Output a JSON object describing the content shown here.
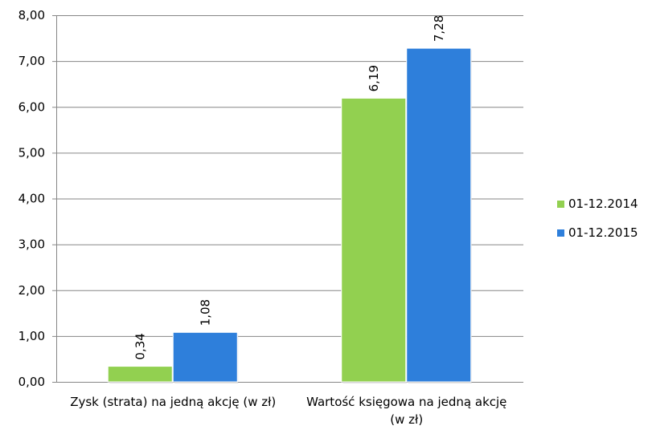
{
  "chart_data": {
    "type": "bar",
    "categories": [
      [
        "Zysk (strata) na jedną akcję (w zł)"
      ],
      [
        "Wartość księgowa na jedną akcję",
        "(w zł)"
      ]
    ],
    "series": [
      {
        "name": "01-12.2014",
        "color": "#92d050",
        "values": [
          0.34,
          6.19
        ],
        "labels": [
          "0,34",
          "6,19"
        ]
      },
      {
        "name": "01-12.2015",
        "color": "#2e7fdb",
        "values": [
          1.08,
          7.28
        ],
        "labels": [
          "1,08",
          "7,28"
        ]
      }
    ],
    "ylim": [
      0,
      8
    ],
    "yticks": [
      0,
      1,
      2,
      3,
      4,
      5,
      6,
      7,
      8
    ],
    "ytick_labels": [
      "0,00",
      "1,00",
      "2,00",
      "3,00",
      "4,00",
      "5,00",
      "6,00",
      "7,00",
      "8,00"
    ],
    "grid": true,
    "legend_position": "right"
  }
}
